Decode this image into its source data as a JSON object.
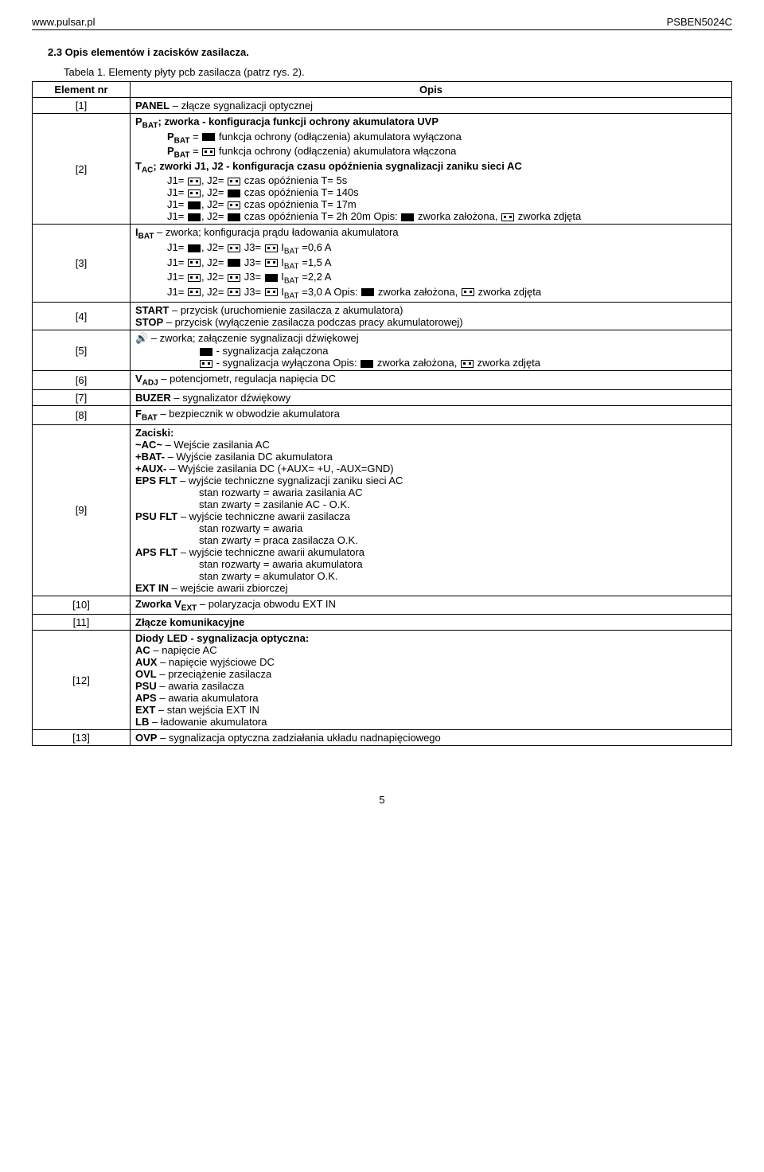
{
  "header": {
    "left": "www.pulsar.pl",
    "right": "PSBEN5024C"
  },
  "section_title": "2.3 Opis elementów i zacisków zasilacza.",
  "table_caption": "Tabela 1. Elementy płyty pcb zasilacza (patrz rys. 2).",
  "col_headers": {
    "el": "Element nr",
    "opis": "Opis"
  },
  "rows": {
    "r1": {
      "el": "[1]",
      "panel": "PANEL",
      "panel_desc": " – złącze sygnalizacji optycznej"
    },
    "r2": {
      "el": "[2]",
      "pbat": "P",
      "bat": "BAT",
      "pbat_desc": "; zworka - konfiguracja funkcji ochrony akumulatora UVP",
      "pbat_on": " funkcja ochrony (odłączenia) akumulatora wyłączona",
      "pbat_off": " funkcja ochrony (odłączenia) akumulatora włączona",
      "tac": "T",
      "ac": "AC",
      "tac_desc": "; zworki J1, J2 - konfiguracja czasu opóźnienia sygnalizacji zaniku sieci AC",
      "j_a": "J1= ",
      "j_a2": ", J2= ",
      "j_a3": " czas opóźnienia T= 5s",
      "j_b3": " czas opóźnienia T= 140s",
      "j_c3": " czas opóźnienia T= 17m",
      "j_d3": " czas opóźnienia T= 2h 20m     Opis: ",
      "zalozona": " zworka założona, ",
      "zdjeta": " zworka zdjęta"
    },
    "r3": {
      "el": "[3]",
      "ibat": "I",
      "bat": "BAT",
      "ibat_desc": "          – zworka; konfiguracja prądu ładowania akumulatora",
      "l1a": "J1= ",
      "l1b": ", J2= ",
      "l1c": " J3= ",
      "l1d": "       I",
      "l1e": " =0,6 A",
      "l2e": " =1,5 A",
      "l3e": " =2,2 A",
      "l4e": " =3,0 A       Opis: ",
      "zalozona": " zworka założona, ",
      "zdjeta": " zworka zdjęta"
    },
    "r4": {
      "el": "[4]",
      "start": "START",
      "start_desc": " – przycisk (uruchomienie zasilacza z akumulatora)",
      "stop": "STOP",
      "stop_desc": "   – przycisk (wyłączenie zasilacza podczas pracy akumulatorowej)"
    },
    "r5": {
      "el": "[5]",
      "spk": "🔊",
      "spk_desc": "           – zworka; załączenie sygnalizacji dźwiękowej",
      "on_desc": " - sygnalizacja załączona",
      "off_desc": " - sygnalizacja wyłączona           Opis: ",
      "zalozona": " zworka założona, ",
      "zdjeta": " zworka zdjęta"
    },
    "r6": {
      "el": "[6]",
      "vadj": "V",
      "adj": "ADJ",
      "desc": "          – potencjometr, regulacja napięcia DC"
    },
    "r7": {
      "el": "[7]",
      "buzer": "BUZER",
      "desc": " – sygnalizator dźwiękowy"
    },
    "r8": {
      "el": "[8]",
      "fbat": "F",
      "bat": "BAT",
      "desc": "          – bezpiecznik w obwodzie akumulatora"
    },
    "r9": {
      "el": "[9]",
      "zaciski": "Zaciski:",
      "ac": "~AC~",
      "ac_desc": "     – Wejście zasilania AC",
      "bat": "+BAT-",
      "bat_desc": "   – Wyjście zasilania DC akumulatora",
      "aux": "+AUX-",
      "aux_desc": "  – Wyjście zasilania DC (+AUX= +U, -AUX=GND)",
      "eps": "EPS  FLT",
      "eps_desc": " – wyjście techniczne sygnalizacji zaniku sieci AC",
      "eps_r": "stan rozwarty     = awaria zasilania AC",
      "eps_z": "stan zwarty         = zasilanie AC - O.K.",
      "psu": "PSU FLT",
      "psu_desc": " – wyjście techniczne awarii zasilacza",
      "psu_r": "stan rozwarty     = awaria",
      "psu_z": "stan zwarty         = praca zasilacza O.K.",
      "aps": "APS FLT",
      "aps_desc": " – wyjście techniczne awarii akumulatora",
      "aps_r": "stan rozwarty     = awaria akumulatora",
      "aps_z": "stan zwarty         = akumulator O.K.",
      "ext": "EXT IN",
      "ext_desc": "  – wejście awarii zbiorczej"
    },
    "r10": {
      "el": "[10]",
      "txt": "Zworka V",
      "ext": "EXT",
      "desc": " – polaryzacja obwodu EXT IN"
    },
    "r11": {
      "el": "[11]",
      "txt": "Złącze komunikacyjne"
    },
    "r12": {
      "el": "[12]",
      "title": "Diody LED - sygnalizacja optyczna:",
      "ac": "AC",
      "ac_d": "        – napięcie AC",
      "aux": "AUX",
      "aux_d": "     – napięcie wyjściowe DC",
      "ovl": "OVL",
      "ovl_d": "     – przeciążenie zasilacza",
      "psu": "PSU",
      "psu_d": "     – awaria zasilacza",
      "aps": "APS",
      "aps_d": "     – awaria akumulatora",
      "ext": "EXT",
      "ext_d": "      – stan wejścia EXT IN",
      "lb": "LB",
      "lb_d": "         – ładowanie akumulatora"
    },
    "r13": {
      "el": "[13]",
      "ovp": "OVP",
      "desc": "     – sygnalizacja optyczna zadziałania układu nadnapięciowego"
    }
  },
  "page_num": "5"
}
